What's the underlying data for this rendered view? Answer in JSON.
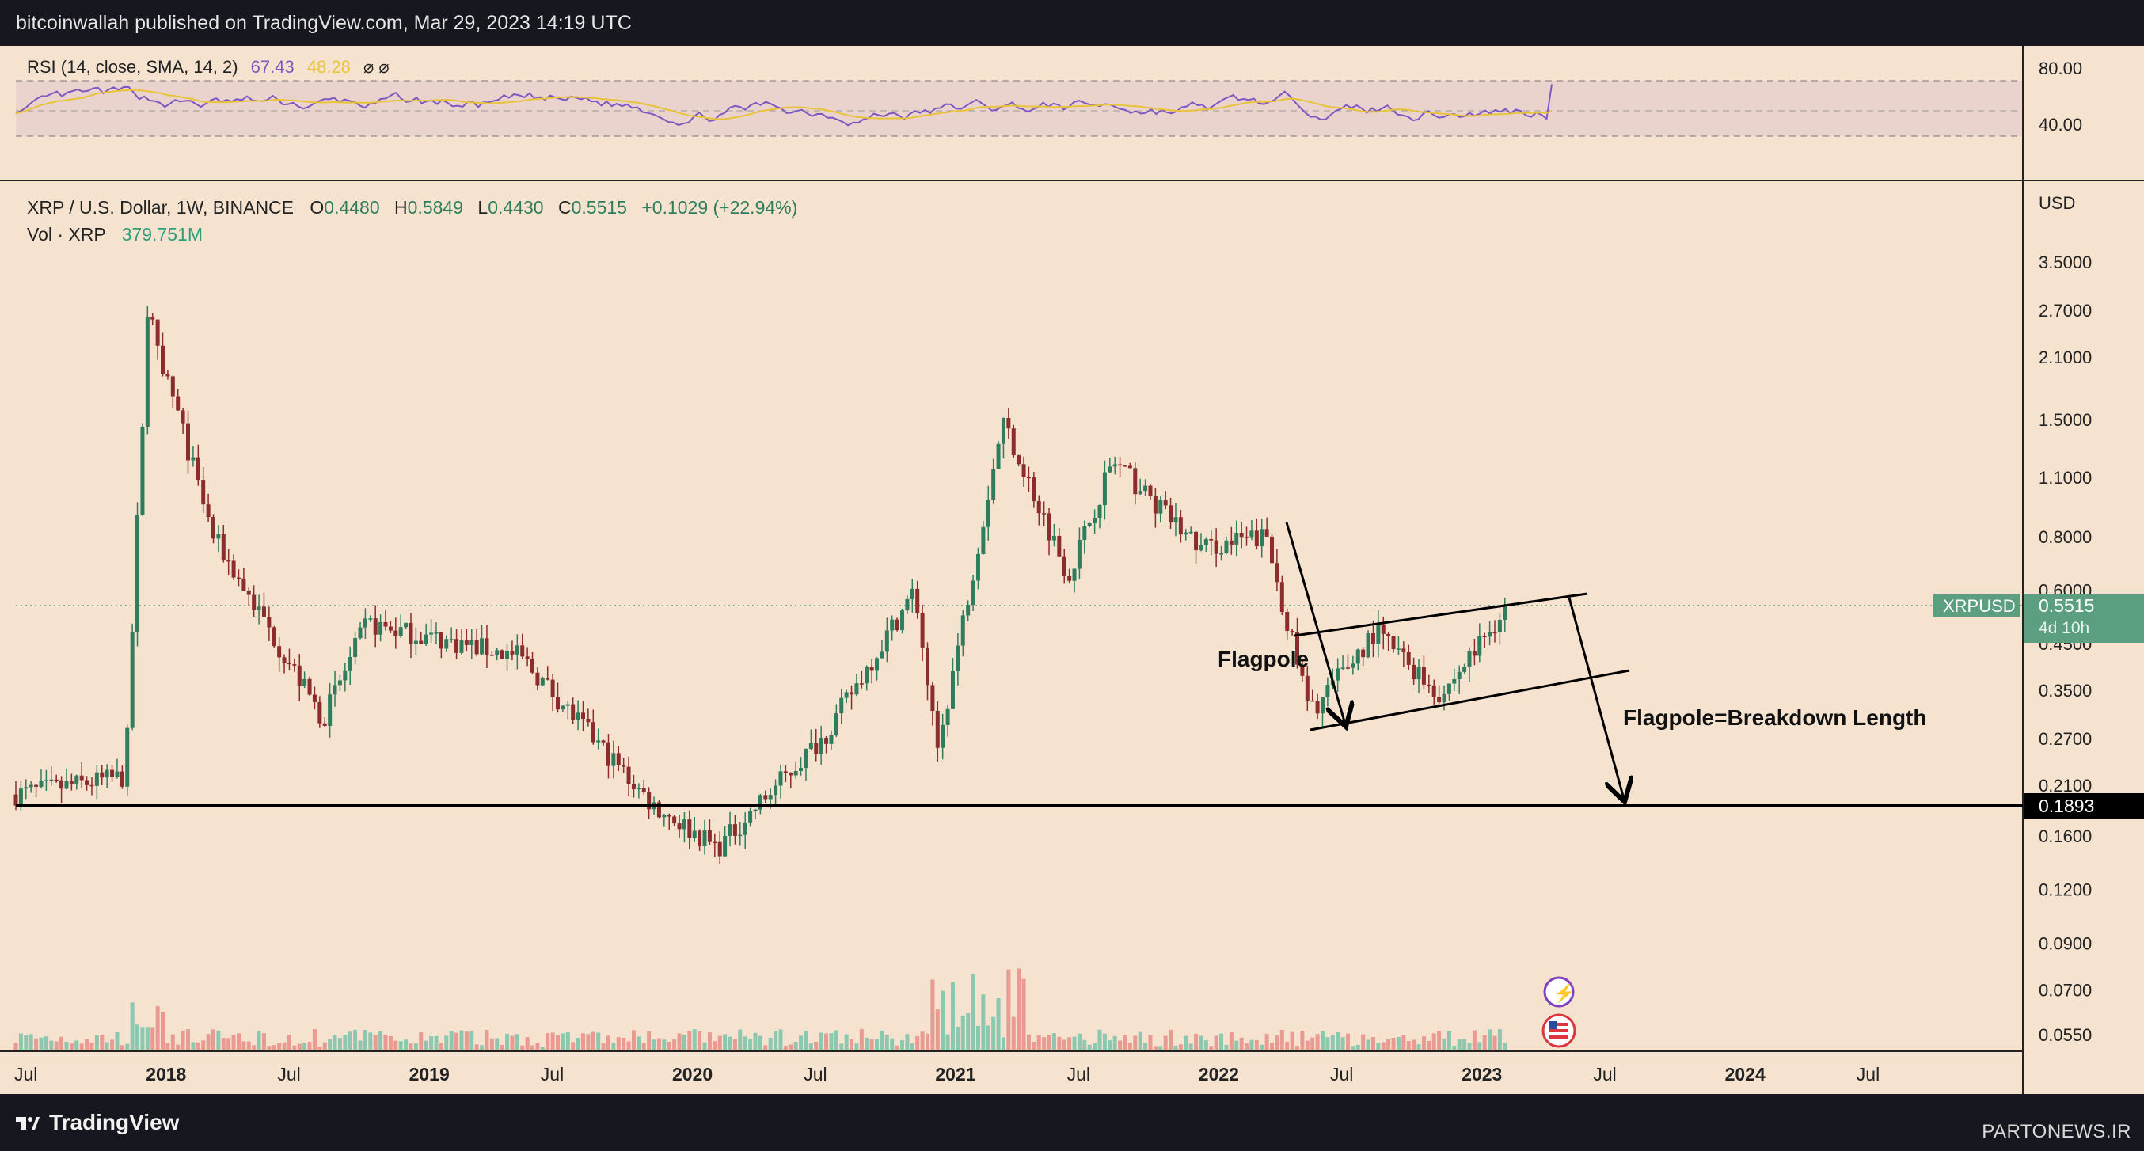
{
  "header": {
    "publisher": "bitcoinwallah published on TradingView.com, Mar 29, 2023 14:19 UTC"
  },
  "footer": {
    "brand": "TradingView",
    "watermark": "PARTONEWS.IR"
  },
  "colors": {
    "background": "#f5e3cf",
    "bull": "#2f7d5d",
    "bear": "#8c2c2c",
    "rsi_line": "#7e57c2",
    "rsi_ma": "#e8c33a",
    "support_line": "#000000",
    "price_tag": "#5b9e80"
  },
  "rsi_panel": {
    "label": "RSI (14, close, SMA, 14, 2)",
    "value": "67.43",
    "ma_value": "48.28",
    "extras": "⌀ ⌀",
    "ticks": [
      "80.00",
      "40.00"
    ]
  },
  "legend": {
    "symbol": "XRP / U.S. Dollar, 1W, BINANCE",
    "o_label": "O",
    "o": "0.4480",
    "h_label": "H",
    "h": "0.5849",
    "l_label": "L",
    "l": "0.4430",
    "c_label": "C",
    "c": "0.5515",
    "change": "+0.1029 (+22.94%)",
    "vol_label": "Vol · XRP",
    "vol_value": "379.751M"
  },
  "price_axis": {
    "currency": "USD",
    "ticks": [
      "3.5000",
      "2.7000",
      "2.1000",
      "1.5000",
      "1.1000",
      "0.8000",
      "0.6000",
      "0.4500",
      "0.3500",
      "0.2700",
      "0.2100",
      "0.1600",
      "0.1200",
      "0.0900",
      "0.0700",
      "0.0550"
    ]
  },
  "price_tag": {
    "symbol": "XRPUSD",
    "price": "0.5515",
    "countdown": "4d 10h"
  },
  "support_tag": "0.1893",
  "annotations": {
    "flagpole": "Flagpole",
    "breakdown": "Flagpole=Breakdown Length"
  },
  "time_axis": {
    "labels": [
      "Jul",
      "2018",
      "Jul",
      "2019",
      "Jul",
      "2020",
      "Jul",
      "2021",
      "Jul",
      "2022",
      "Jul",
      "2023",
      "Jul",
      "2024",
      "Jul"
    ]
  },
  "chart_data": {
    "type": "candlestick",
    "title": "XRP / U.S. Dollar, 1W, BINANCE",
    "scale": "log",
    "ylabel": "USD",
    "ylim": [
      0.05,
      4.2
    ],
    "x_range": [
      "2017-07",
      "2024-10"
    ],
    "current_price": 0.5515,
    "support_level": 0.1893,
    "key_points": [
      {
        "date": "2017-07",
        "price": 0.2
      },
      {
        "date": "2017-12",
        "price": 0.22
      },
      {
        "date": "2018-01",
        "price": 2.7
      },
      {
        "date": "2018-04",
        "price": 0.8
      },
      {
        "date": "2018-09",
        "price": 0.3
      },
      {
        "date": "2018-11",
        "price": 0.5
      },
      {
        "date": "2019-06",
        "price": 0.42
      },
      {
        "date": "2019-12",
        "price": 0.19
      },
      {
        "date": "2020-03",
        "price": 0.15
      },
      {
        "date": "2020-08",
        "price": 0.28
      },
      {
        "date": "2020-12",
        "price": 0.6
      },
      {
        "date": "2021-01",
        "price": 0.25
      },
      {
        "date": "2021-04",
        "price": 1.5
      },
      {
        "date": "2021-07",
        "price": 0.65
      },
      {
        "date": "2021-09",
        "price": 1.2
      },
      {
        "date": "2022-01",
        "price": 0.75
      },
      {
        "date": "2022-04",
        "price": 0.8
      },
      {
        "date": "2022-06",
        "price": 0.31
      },
      {
        "date": "2022-09",
        "price": 0.48
      },
      {
        "date": "2022-12",
        "price": 0.34
      },
      {
        "date": "2023-03",
        "price": 0.5515
      }
    ],
    "rsi": {
      "value": 67.43,
      "ma": 48.28,
      "levels": [
        70,
        50,
        30
      ]
    },
    "volume_last": "379.751M"
  }
}
